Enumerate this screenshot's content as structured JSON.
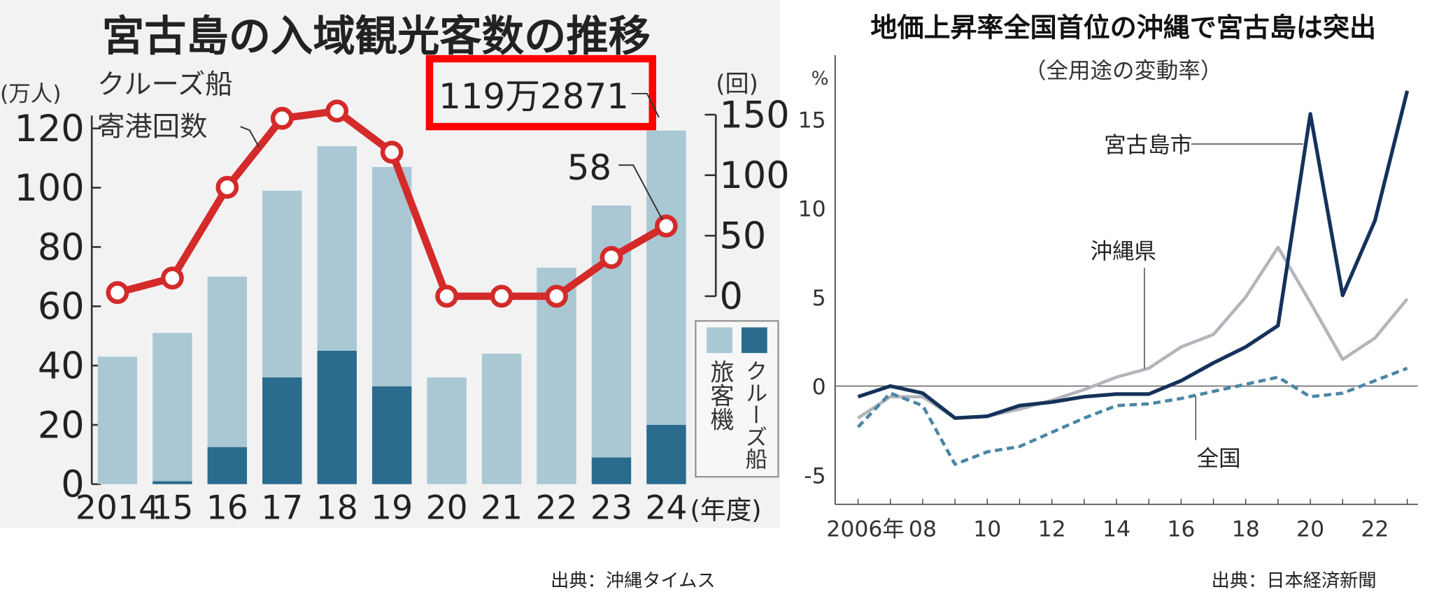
{
  "chart_data": [
    {
      "type": "bar",
      "title": "宮古島の入域観光客数の推移",
      "categories": [
        "2014",
        "15",
        "16",
        "17",
        "18",
        "19",
        "20",
        "21",
        "22",
        "23",
        "24"
      ],
      "x_unit_label": "(年度)",
      "ylabel": "(万人)",
      "ylim": [
        0,
        120
      ],
      "yticks": [
        "0",
        "20",
        "40",
        "60",
        "80",
        "100",
        "120"
      ],
      "series": [
        {
          "name": "旅客機",
          "color": "#a9c8d4",
          "values": [
            43,
            50,
            57.5,
            63,
            69,
            74,
            36,
            44,
            73,
            85,
            99.3
          ]
        },
        {
          "name": "クルーズ船",
          "color": "#2a6b8e",
          "values": [
            0,
            1,
            12.5,
            36,
            45,
            33,
            0,
            0,
            0,
            9,
            20
          ]
        }
      ],
      "line_series": {
        "label": [
          "クルーズ船",
          "寄港回数"
        ],
        "axis_label": "(回)",
        "ylim": [
          0,
          150
        ],
        "yticks": [
          "0",
          "50",
          "100",
          "150"
        ],
        "color": "#d42a2a",
        "values": [
          3,
          15,
          90,
          147,
          153,
          119,
          0,
          0,
          0,
          32,
          58
        ]
      },
      "annotations": {
        "total_2024": "119万2871",
        "cruise_2024": "58"
      },
      "highlight_color": "#ff0000",
      "source": "出典：沖縄タイムス"
    },
    {
      "type": "line",
      "title": "地価上昇率全国首位の沖縄で宮古島は突出",
      "subtitle": "（全用途の変動率）",
      "ylabel": "%",
      "ylim": [
        -6.5,
        18
      ],
      "yticks": [
        "-5",
        "0",
        "5",
        "10",
        "15"
      ],
      "x": [
        2006,
        2007,
        2008,
        2009,
        2010,
        2011,
        2012,
        2013,
        2014,
        2015,
        2016,
        2017,
        2018,
        2019,
        2020,
        2021,
        2022,
        2023
      ],
      "xticks": [
        "2006年",
        "08",
        "10",
        "12",
        "14",
        "16",
        "18",
        "20",
        "22"
      ],
      "series": [
        {
          "name": "宮古島市",
          "color": "#14325a",
          "style": "solid",
          "values": [
            -0.6,
            0,
            -0.4,
            -1.8,
            -1.7,
            -1.1,
            -0.9,
            -0.6,
            -0.45,
            -0.45,
            0.3,
            1.3,
            2.2,
            3.4,
            15.3,
            5.1,
            9.3,
            16.6
          ]
        },
        {
          "name": "沖縄県",
          "color": "#b4b4bc",
          "style": "solid",
          "values": [
            -1.8,
            -0.6,
            -0.6,
            -1.8,
            -1.7,
            -1.3,
            -0.8,
            -0.2,
            0.5,
            1.0,
            2.2,
            2.9,
            5.0,
            7.8,
            4.7,
            1.5,
            2.7,
            4.9
          ]
        },
        {
          "name": "全国",
          "color": "#4a86a4",
          "style": "dashed",
          "values": [
            -2.3,
            -0.4,
            -1.1,
            -4.4,
            -3.7,
            -3.4,
            -2.6,
            -1.8,
            -1.1,
            -1.0,
            -0.7,
            -0.3,
            0.1,
            0.5,
            -0.6,
            -0.4,
            0.3,
            1.0
          ]
        }
      ],
      "grid": false,
      "source": "出典：日本経済新聞"
    }
  ]
}
